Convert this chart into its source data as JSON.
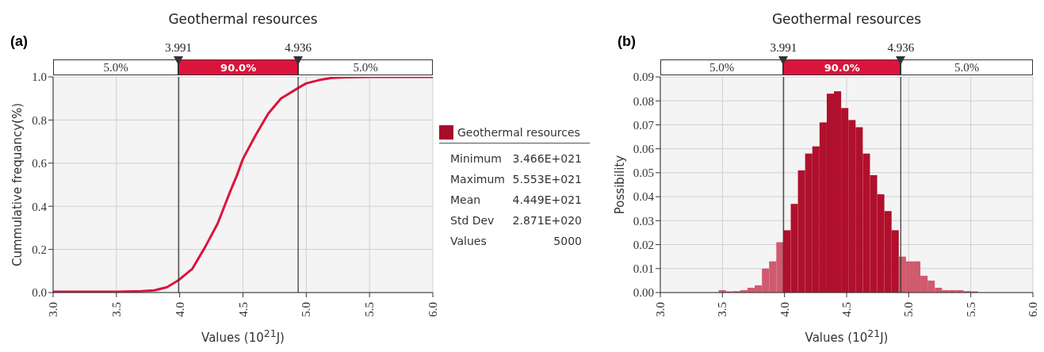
{
  "chart_data": [
    {
      "type": "line",
      "title": "Geothermal resources",
      "xlabel": "Values (10$^{21}$J)",
      "ylabel": "Cummulative frequancy(%)",
      "annotations": [
        "(a)",
        "5.0%",
        "90.0%",
        "5.0%"
      ],
      "grid": true,
      "marker": "none",
      "line_style": "solid",
      "series": [
        {
          "color": "#dc143c",
          "x": [
            3.0,
            3.5,
            3.7,
            3.8,
            3.9,
            3.99,
            4.05,
            4.1,
            4.2,
            4.3,
            4.4,
            4.45,
            4.5,
            4.6,
            4.7,
            4.8,
            4.94,
            5.0,
            5.1,
            5.2,
            5.3,
            5.5,
            6.0
          ],
          "values": [
            0.004,
            0.004,
            0.006,
            0.01,
            0.025,
            0.057,
            0.086,
            0.11,
            0.21,
            0.32,
            0.47,
            0.54,
            0.62,
            0.73,
            0.83,
            0.9,
            0.95,
            0.97,
            0.985,
            0.995,
            0.998,
            1.0,
            1.0
          ]
        }
      ],
      "xlim": [
        3.0,
        6.0
      ],
      "xticks": [
        {
          "value": 3.0,
          "label": "3.0"
        },
        {
          "value": 3.5,
          "label": "3.5"
        },
        {
          "value": 4.0,
          "label": "4.0"
        },
        {
          "value": 4.5,
          "label": "4.5"
        },
        {
          "value": 5.0,
          "label": "5.0"
        },
        {
          "value": 5.5,
          "label": "5.5"
        },
        {
          "value": 6.0,
          "label": "6.0"
        }
      ],
      "ylim": [
        0,
        1.0
      ],
      "yticks": [
        {
          "value": 0,
          "label": "0.0"
        },
        {
          "value": 0.2,
          "label": "0.2"
        },
        {
          "value": 0.4,
          "label": "0.4"
        },
        {
          "value": 0.6,
          "label": "0.6"
        },
        {
          "value": 0.8,
          "label": "0.8"
        },
        {
          "value": 1.0,
          "label": "1.0"
        }
      ],
      "ref_lines": [
        {
          "axis": "x",
          "value": 3.991,
          "label": "3.991",
          "color": "#333333"
        },
        {
          "axis": "x",
          "value": 4.936,
          "label": "4.936",
          "color": "#333333"
        }
      ]
    },
    {
      "type": "other",
      "title": "Geothermal resources",
      "color": "#a50d2a",
      "annotations": [
        "Minimum",
        "3.466E+021",
        "Maximum",
        "5.553E+021",
        "Mean",
        "4.449E+021",
        "Std Dev",
        "2.871E+020",
        "Values",
        "5000"
      ]
    },
    {
      "type": "histogram",
      "title": "Geothermal resources",
      "xlabel": "Values (10$^{21}$J)",
      "ylabel": "Possibility",
      "annotations": [
        "(b)",
        "5.0%",
        "90.0%",
        "5.0%"
      ],
      "grid": true,
      "bins": [
        3.47,
        3.528,
        3.586,
        3.644,
        3.702,
        3.76,
        3.818,
        3.876,
        3.934,
        3.992,
        4.05,
        4.108,
        4.166,
        4.224,
        4.282,
        4.34,
        4.398,
        4.456,
        4.514,
        4.572,
        4.63,
        4.688,
        4.746,
        4.804,
        4.862,
        4.92,
        4.978,
        5.036,
        5.094,
        5.152,
        5.21,
        5.268,
        5.326,
        5.384,
        5.442,
        5.5,
        5.558
      ],
      "values": [
        0.001,
        0.0005,
        0.0006,
        0.001,
        0.002,
        0.003,
        0.01,
        0.013,
        0.021,
        0.026,
        0.037,
        0.051,
        0.058,
        0.061,
        0.071,
        0.083,
        0.084,
        0.077,
        0.072,
        0.069,
        0.058,
        0.049,
        0.041,
        0.034,
        0.026,
        0.015,
        0.013,
        0.013,
        0.007,
        0.005,
        0.002,
        0.001,
        0.001,
        0.001,
        0.0006,
        0.0005
      ],
      "colors": [
        "#d05a6e",
        "#d05a6e",
        "#d05a6e",
        "#d05a6e",
        "#d05a6e",
        "#d05a6e",
        "#d05a6e",
        "#d05a6e",
        "#d05a6e",
        "#b0102c",
        "#b0102c",
        "#b0102c",
        "#b0102c",
        "#b0102c",
        "#b0102c",
        "#b0102c",
        "#b0102c",
        "#b0102c",
        "#b0102c",
        "#b0102c",
        "#b0102c",
        "#b0102c",
        "#b0102c",
        "#b0102c",
        "#b0102c",
        "#d05a6e",
        "#d05a6e",
        "#d05a6e",
        "#d05a6e",
        "#d05a6e",
        "#d05a6e",
        "#d05a6e",
        "#d05a6e",
        "#d05a6e",
        "#d05a6e",
        "#d05a6e"
      ],
      "xlim": [
        3.0,
        6.0
      ],
      "xticks": [
        {
          "value": 3.0,
          "label": "3.0"
        },
        {
          "value": 3.5,
          "label": "3.5"
        },
        {
          "value": 4.0,
          "label": "4.0"
        },
        {
          "value": 4.5,
          "label": "4.5"
        },
        {
          "value": 5.0,
          "label": "5.0"
        },
        {
          "value": 5.5,
          "label": "5.5"
        },
        {
          "value": 6.0,
          "label": "6.0"
        }
      ],
      "ylim": [
        0,
        0.09
      ],
      "yticks": [
        {
          "value": 0,
          "label": "0.00"
        },
        {
          "value": 0.01,
          "label": "0.01"
        },
        {
          "value": 0.02,
          "label": "0.02"
        },
        {
          "value": 0.03,
          "label": "0.03"
        },
        {
          "value": 0.04,
          "label": "0.04"
        },
        {
          "value": 0.05,
          "label": "0.05"
        },
        {
          "value": 0.06,
          "label": "0.06"
        },
        {
          "value": 0.07,
          "label": "0.07"
        },
        {
          "value": 0.08,
          "label": "0.08"
        },
        {
          "value": 0.09,
          "label": "0.09"
        }
      ],
      "ref_lines": [
        {
          "axis": "x",
          "value": 3.991,
          "label": "3.991",
          "color": "#333333"
        },
        {
          "axis": "x",
          "value": 4.936,
          "label": "4.936",
          "color": "#333333"
        }
      ]
    }
  ]
}
